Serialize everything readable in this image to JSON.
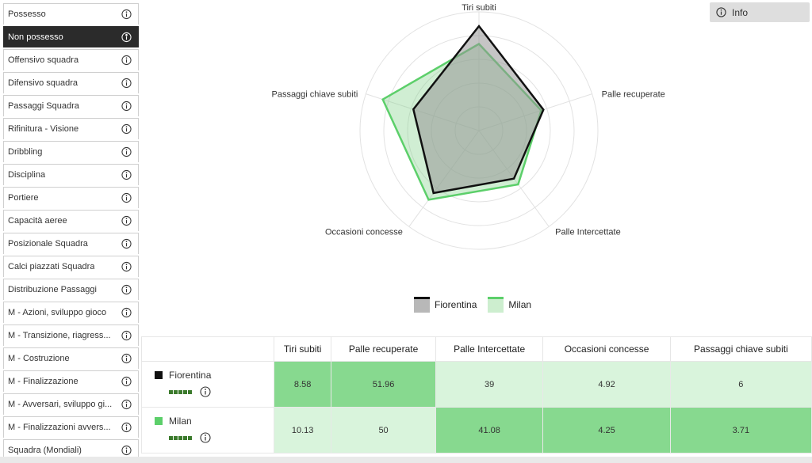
{
  "sidebar": {
    "items": [
      {
        "label": "Possesso",
        "active": false
      },
      {
        "label": "Non possesso",
        "active": true
      },
      {
        "label": "Offensivo squadra",
        "active": false
      },
      {
        "label": "Difensivo squadra",
        "active": false
      },
      {
        "label": "Passaggi Squadra",
        "active": false
      },
      {
        "label": "Rifinitura - Visione",
        "active": false
      },
      {
        "label": "Dribbling",
        "active": false
      },
      {
        "label": "Disciplina",
        "active": false
      },
      {
        "label": "Portiere",
        "active": false
      },
      {
        "label": "Capacità aeree",
        "active": false
      },
      {
        "label": "Posizionale Squadra",
        "active": false
      },
      {
        "label": "Calci piazzati Squadra",
        "active": false
      },
      {
        "label": "Distribuzione Passaggi",
        "active": false
      },
      {
        "label": "M - Azioni, sviluppo gioco",
        "active": false
      },
      {
        "label": "M - Transizione, riagress...",
        "active": false
      },
      {
        "label": "M - Costruzione",
        "active": false
      },
      {
        "label": "M - Finalizzazione",
        "active": false
      },
      {
        "label": "M - Avversari, sviluppo gi...",
        "active": false
      },
      {
        "label": "M - Finalizzazioni avvers...",
        "active": false
      },
      {
        "label": "Squadra (Mondiali)",
        "active": false
      }
    ]
  },
  "info_button": {
    "label": "Info",
    "icon": "info-icon"
  },
  "colors": {
    "fiorentina": "#111111",
    "milan": "#5ccf6a",
    "fiorentina_fill": "#b8b8b8",
    "milan_fill": "#cdeecf"
  },
  "chart_data": {
    "type": "radar",
    "axes": [
      "Tiri subiti",
      "Palle recuperate",
      "Palle Intercettate",
      "Occasioni concesse",
      "Passaggi chiave subiti"
    ],
    "series": [
      {
        "name": "Fiorentina",
        "values": [
          8.58,
          51.96,
          39,
          4.92,
          6
        ],
        "normalized": [
          0.88,
          0.57,
          0.5,
          0.65,
          0.58
        ]
      },
      {
        "name": "Milan",
        "values": [
          10.13,
          50,
          41.08,
          4.25,
          3.71
        ],
        "normalized": [
          0.73,
          0.55,
          0.56,
          0.72,
          0.85
        ]
      }
    ],
    "rings": 5
  },
  "legend": [
    {
      "name": "Fiorentina"
    },
    {
      "name": "Milan"
    }
  ],
  "table": {
    "headers": [
      "Tiri subiti",
      "Palle recuperate",
      "Palle Intercettate",
      "Occasioni concesse",
      "Passaggi chiave subiti"
    ],
    "rows": [
      {
        "team": "Fiorentina",
        "values": [
          "8.58",
          "51.96",
          "39",
          "4.92",
          "6"
        ],
        "strong": [
          true,
          true,
          false,
          false,
          false
        ]
      },
      {
        "team": "Milan",
        "values": [
          "10.13",
          "50",
          "41.08",
          "4.25",
          "3.71"
        ],
        "strong": [
          false,
          false,
          true,
          true,
          true
        ]
      }
    ]
  }
}
